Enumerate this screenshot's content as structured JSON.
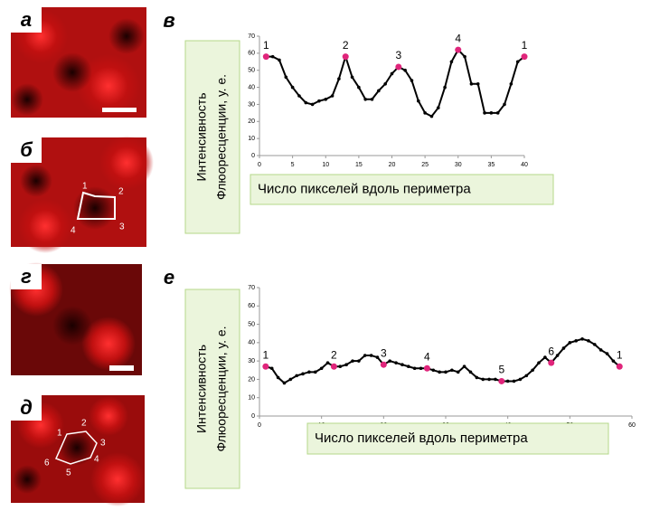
{
  "panels": [
    {
      "letter": "а"
    },
    {
      "letter": "б",
      "labels": [
        "1",
        "2",
        "3",
        "4"
      ]
    },
    {
      "letter": "г"
    },
    {
      "letter": "д",
      "labels": [
        "1",
        "2",
        "3",
        "4",
        "5",
        "6"
      ]
    }
  ],
  "chart_data": [
    {
      "type": "line",
      "letter": "в",
      "x_label": "Число пикселей вдоль периметра",
      "y_label": [
        "Интенсивность",
        "Флюоресценции,  у. е."
      ],
      "x": [
        1,
        2,
        3,
        4,
        5,
        6,
        7,
        8,
        9,
        10,
        11,
        12,
        13,
        14,
        15,
        16,
        17,
        18,
        19,
        20,
        21,
        22,
        23,
        24,
        25,
        26,
        27,
        28,
        29,
        30,
        31,
        32,
        33,
        34,
        35,
        36,
        37,
        38,
        39,
        40
      ],
      "values": [
        58,
        58,
        56,
        46,
        40,
        35,
        31,
        30,
        32,
        33,
        35,
        45,
        58,
        46,
        40,
        33,
        33,
        38,
        42,
        48,
        52,
        50,
        44,
        32,
        25,
        23,
        28,
        40,
        55,
        62,
        58,
        42,
        42,
        25,
        25,
        25,
        30,
        42,
        55,
        58
      ],
      "color": "#000000",
      "markers": {
        "x": [
          1,
          13,
          21,
          30,
          40
        ],
        "values": [
          58,
          58,
          52,
          62,
          58
        ],
        "labels": [
          "1",
          "2",
          "3",
          "4",
          "1"
        ],
        "color": "#e0257b"
      },
      "xlim": [
        0,
        40
      ],
      "xticks": [
        0,
        5,
        10,
        15,
        20,
        25,
        30,
        35,
        40
      ],
      "ylim": [
        0,
        70
      ],
      "yticks": [
        0,
        10,
        20,
        30,
        40,
        50,
        60,
        70
      ]
    },
    {
      "type": "line",
      "letter": "е",
      "x_label": "Число пикселей вдоль периметра",
      "y_label": [
        "Интенсивность",
        "Флюоресценции,  у. е."
      ],
      "x": [
        1,
        2,
        3,
        4,
        5,
        6,
        7,
        8,
        9,
        10,
        11,
        12,
        13,
        14,
        15,
        16,
        17,
        18,
        19,
        20,
        21,
        22,
        23,
        24,
        25,
        26,
        27,
        28,
        29,
        30,
        31,
        32,
        33,
        34,
        35,
        36,
        37,
        38,
        39,
        40,
        41,
        42,
        43,
        44,
        45,
        46,
        47,
        48,
        49,
        50,
        51,
        52,
        53,
        54,
        55,
        56,
        57,
        58
      ],
      "values": [
        27,
        26,
        21,
        18,
        20,
        22,
        23,
        24,
        24,
        26,
        29,
        27,
        27,
        28,
        30,
        30,
        33,
        33,
        32,
        28,
        30,
        29,
        28,
        27,
        26,
        26,
        26,
        25,
        24,
        24,
        25,
        24,
        27,
        24,
        21,
        20,
        20,
        20,
        19,
        19,
        19,
        20,
        22,
        25,
        29,
        32,
        29,
        33,
        37,
        40,
        41,
        42,
        41,
        39,
        36,
        34,
        30,
        27
      ],
      "color": "#000000",
      "markers": {
        "x": [
          1,
          12,
          20,
          27,
          39,
          47,
          58
        ],
        "values": [
          27,
          27,
          28,
          26,
          19,
          29,
          27
        ],
        "labels": [
          "1",
          "2",
          "3",
          "4",
          "5",
          "6",
          "1"
        ],
        "color": "#e0257b"
      },
      "xlim": [
        0,
        60
      ],
      "xticks": [
        0,
        10,
        20,
        30,
        40,
        50,
        60
      ],
      "ylim": [
        0,
        70
      ],
      "yticks": [
        0,
        10,
        20,
        30,
        40,
        50,
        60,
        70
      ]
    }
  ]
}
